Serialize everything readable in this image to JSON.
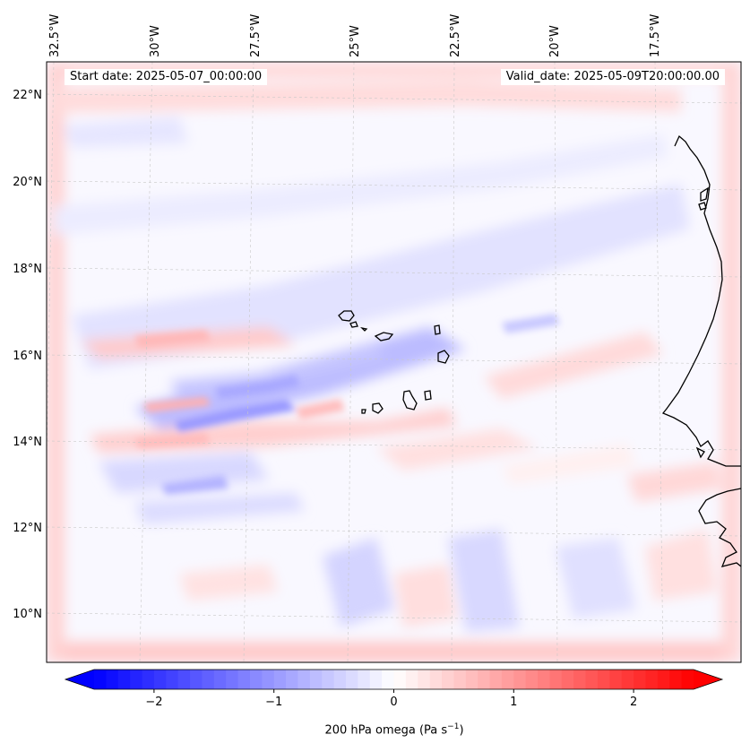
{
  "header": {
    "start_date": "Start date: 2025-05-07_00:00:00",
    "valid_date": "Valid_date: 2025-05-09T20:00:00.00"
  },
  "axes": {
    "lon_ticks": [
      "32.5°W",
      "30°W",
      "27.5°W",
      "25°W",
      "22.5°W",
      "20°W",
      "17.5°W"
    ],
    "lat_ticks": [
      "22°N",
      "20°N",
      "18°N",
      "16°N",
      "14°N",
      "12°N",
      "10°N"
    ]
  },
  "colorbar": {
    "label": "200 hPa omega (Pa s",
    "label_sup": "−1",
    "label_end": ")",
    "ticks": [
      "−2",
      "−1",
      "0",
      "1",
      "2"
    ],
    "values": [
      -2,
      -1,
      0,
      1,
      2
    ],
    "min": -2.5,
    "max": 2.5,
    "cmap": "bwr",
    "colors": {
      "low": "#0000ff",
      "mid": "#ffffff",
      "high": "#ff0000"
    }
  },
  "map": {
    "lon_range": [
      -33,
      -16.2
    ],
    "lat_range": [
      8.8,
      22.8
    ],
    "projection": "lambert-conformal",
    "gridlines": true,
    "features": [
      "cape-verde-islands",
      "west-africa-coastline"
    ]
  }
}
